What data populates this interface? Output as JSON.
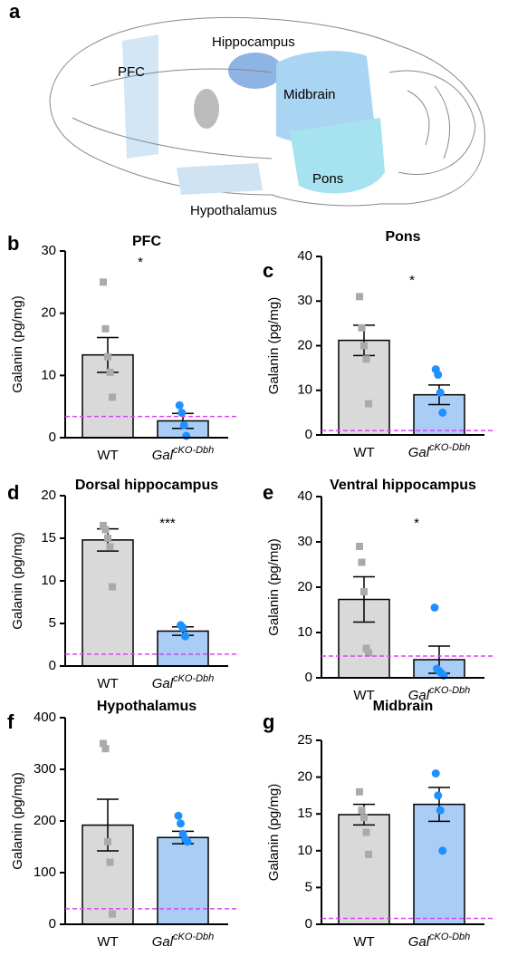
{
  "brain_diagram": {
    "panel": "a",
    "labels": [
      "PFC",
      "Hippocampus",
      "Midbrain",
      "Pons",
      "Hypothalamus"
    ]
  },
  "chart_data": [
    {
      "type": "bar",
      "panel": "b",
      "title": "PFC",
      "ylabel": "Galanin (pg/mg)",
      "categories": [
        "WT",
        "Gal"
      ],
      "category_superscripts": [
        null,
        "cKO-Dbh"
      ],
      "values": [
        13.3,
        2.7
      ],
      "errors": [
        2.8,
        1.2
      ],
      "colors": [
        "#d9d9d9",
        "#a9cdf5"
      ],
      "point_colors": [
        "#aaaaaa",
        "#1e90ff"
      ],
      "points": [
        [
          25,
          17.5,
          13,
          10.5,
          6.5
        ],
        [
          5.2,
          4,
          2,
          0.3
        ]
      ],
      "ylim": [
        0,
        30
      ],
      "yticks": [
        0,
        10,
        20,
        30
      ],
      "reference_line": 3.4,
      "reference_color": "#e040fb",
      "annotation": "*"
    },
    {
      "type": "bar",
      "panel": "c",
      "title": "Pons",
      "ylabel": "Galanin (pg/mg)",
      "categories": [
        "WT",
        "Gal"
      ],
      "category_superscripts": [
        null,
        "cKO-Dbh"
      ],
      "values": [
        21.2,
        9
      ],
      "errors": [
        3.4,
        2.2
      ],
      "colors": [
        "#d9d9d9",
        "#a9cdf5"
      ],
      "point_colors": [
        "#aaaaaa",
        "#1e90ff"
      ],
      "points": [
        [
          31,
          24,
          20,
          17,
          7
        ],
        [
          14.7,
          13.5,
          9.5,
          5
        ]
      ],
      "ylim": [
        0,
        40
      ],
      "yticks": [
        0,
        10,
        20,
        30,
        40
      ],
      "reference_line": 1,
      "reference_color": "#e040fb",
      "annotation": "*"
    },
    {
      "type": "bar",
      "panel": "d",
      "title": "Dorsal hippocampus",
      "ylabel": "Galanin (pg/mg)",
      "categories": [
        "WT",
        "Gal"
      ],
      "category_superscripts": [
        null,
        "cKO-Dbh"
      ],
      "values": [
        14.8,
        4.1
      ],
      "errors": [
        1.3,
        0.5
      ],
      "colors": [
        "#d9d9d9",
        "#a9cdf5"
      ],
      "point_colors": [
        "#aaaaaa",
        "#1e90ff"
      ],
      "points": [
        [
          16.5,
          16,
          15,
          14,
          9.3
        ],
        [
          4.8,
          4.5,
          3.5
        ]
      ],
      "ylim": [
        0,
        20
      ],
      "yticks": [
        0,
        5,
        10,
        15,
        20
      ],
      "reference_line": 1.4,
      "reference_color": "#e040fb",
      "annotation": "***"
    },
    {
      "type": "bar",
      "panel": "e",
      "title": "Ventral hippocampus",
      "ylabel": "Galanin (pg/mg)",
      "categories": [
        "WT",
        "Gal"
      ],
      "category_superscripts": [
        null,
        "cKO-Dbh"
      ],
      "values": [
        17.3,
        4
      ],
      "errors": [
        5,
        3
      ],
      "colors": [
        "#d9d9d9",
        "#a9cdf5"
      ],
      "point_colors": [
        "#aaaaaa",
        "#1e90ff"
      ],
      "points": [
        [
          29,
          25.5,
          19,
          6.5,
          5.5
        ],
        [
          15.5,
          2,
          1.5,
          1,
          0.5
        ]
      ],
      "ylim": [
        0,
        40
      ],
      "yticks": [
        0,
        10,
        20,
        30,
        40
      ],
      "reference_line": 4.8,
      "reference_color": "#e040fb",
      "annotation": "*"
    },
    {
      "type": "bar",
      "panel": "f",
      "title": "Hypothalamus",
      "ylabel": "Galanin (pg/mg)",
      "categories": [
        "WT",
        "Gal"
      ],
      "category_superscripts": [
        null,
        "cKO-Dbh"
      ],
      "values": [
        192,
        168
      ],
      "errors": [
        50,
        12
      ],
      "colors": [
        "#d9d9d9",
        "#a9cdf5"
      ],
      "point_colors": [
        "#aaaaaa",
        "#1e90ff"
      ],
      "points": [
        [
          350,
          340,
          160,
          120,
          20
        ],
        [
          210,
          195,
          175,
          165,
          160
        ]
      ],
      "ylim": [
        0,
        400
      ],
      "yticks": [
        0,
        100,
        200,
        300,
        400
      ],
      "reference_line": 30,
      "reference_color": "#e040fb"
    },
    {
      "type": "bar",
      "panel": "g",
      "title": "Midbrain",
      "ylabel": "Galanin (pg/mg)",
      "categories": [
        "WT",
        "Gal"
      ],
      "category_superscripts": [
        null,
        "cKO-Dbh"
      ],
      "values": [
        14.9,
        16.3
      ],
      "errors": [
        1.4,
        2.3
      ],
      "colors": [
        "#d9d9d9",
        "#a9cdf5"
      ],
      "point_colors": [
        "#aaaaaa",
        "#1e90ff"
      ],
      "points": [
        [
          18,
          15.5,
          14.5,
          12.5,
          9.5
        ],
        [
          20.5,
          17.5,
          15.5,
          10
        ]
      ],
      "ylim": [
        0,
        25
      ],
      "yticks": [
        0,
        5,
        10,
        15,
        20,
        25
      ],
      "reference_line": 0.8,
      "reference_color": "#e040fb"
    }
  ]
}
